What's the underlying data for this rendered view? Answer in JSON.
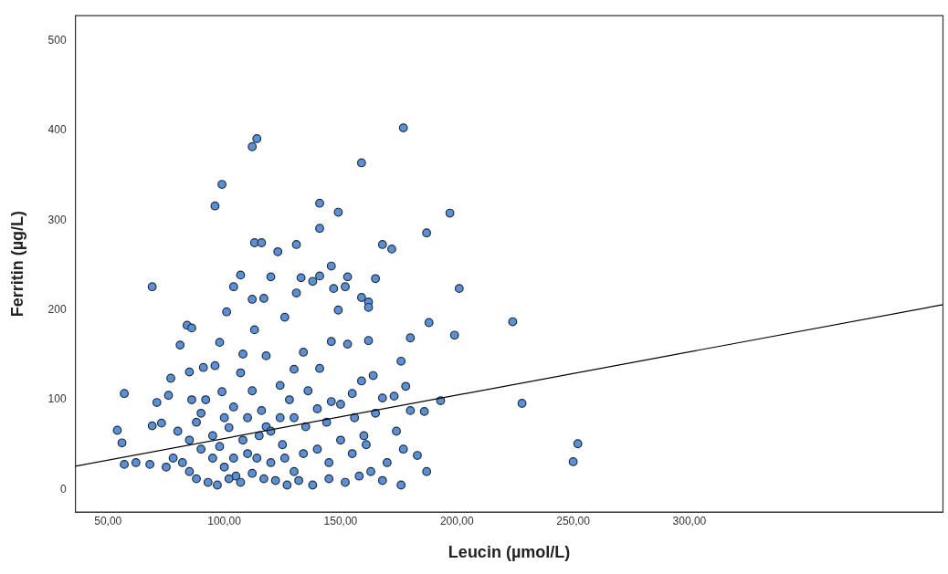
{
  "chart_data": {
    "type": "scatter",
    "xlabel": "Leucin (µmol/L)",
    "ylabel": "Ferritin (µg/L)",
    "xlim": [
      36,
      409
    ],
    "ylim": [
      -25,
      528
    ],
    "xticks": [
      {
        "value": 50,
        "label": "50,00"
      },
      {
        "value": 100,
        "label": "100,00"
      },
      {
        "value": 150,
        "label": "150,00"
      },
      {
        "value": 200,
        "label": "200,00"
      },
      {
        "value": 250,
        "label": "250,00"
      },
      {
        "value": 300,
        "label": "300,00"
      }
    ],
    "yticks": [
      0,
      100,
      200,
      300,
      400,
      500
    ],
    "grid": false,
    "legend": false,
    "series": [
      {
        "color": "#5b8fd6",
        "marker": "circle",
        "x": [
          177,
          114,
          112,
          159,
          99,
          96,
          141,
          149,
          197,
          141,
          187,
          113,
          116,
          131,
          168,
          172,
          123,
          146,
          107,
          120,
          133,
          153,
          165,
          141,
          138,
          69,
          104,
          152,
          147,
          201,
          131,
          117,
          112,
          159,
          162,
          162,
          126,
          101,
          149,
          188,
          224,
          84,
          86,
          113,
          199,
          81,
          98,
          180,
          108,
          146,
          153,
          162,
          176,
          134,
          118,
          85,
          91,
          96,
          107,
          130,
          141,
          159,
          164,
          178,
          173,
          168,
          193,
          228,
          186,
          180,
          57,
          76,
          71,
          56,
          54,
          57,
          62,
          68,
          69,
          73,
          77,
          99,
          124,
          146,
          155,
          130,
          116,
          102,
          88,
          80,
          85,
          90,
          95,
          100,
          105,
          110,
          115,
          120,
          125,
          130,
          135,
          140,
          145,
          150,
          155,
          160,
          165,
          170,
          174,
          177,
          183,
          187,
          176,
          168,
          163,
          158,
          152,
          145,
          138,
          132,
          127,
          122,
          117,
          112,
          107,
          102,
          97,
          93,
          88,
          85,
          82,
          78,
          75,
          250,
          252,
          140,
          150,
          128,
          118,
          108,
          95,
          92,
          104,
          112,
          124,
          136,
          144,
          156,
          161,
          134,
          126,
          114,
          104,
          98,
          120,
          110,
          100,
          90,
          86
        ],
        "values": [
          403,
          391,
          382,
          364,
          340,
          316,
          319,
          309,
          308,
          291,
          286,
          275,
          275,
          273,
          273,
          268,
          265,
          249,
          239,
          237,
          236,
          237,
          235,
          238,
          232,
          226,
          226,
          226,
          224,
          224,
          219,
          213,
          212,
          214,
          209,
          203,
          192,
          198,
          200,
          186,
          187,
          183,
          180,
          178,
          172,
          161,
          164,
          169,
          151,
          165,
          162,
          166,
          143,
          153,
          149,
          131,
          136,
          138,
          130,
          134,
          135,
          121,
          127,
          115,
          104,
          102,
          99,
          96,
          87,
          88,
          107,
          105,
          97,
          52,
          66,
          28,
          30,
          28,
          71,
          74,
          124,
          109,
          116,
          98,
          107,
          80,
          88,
          69,
          75,
          65,
          55,
          45,
          35,
          25,
          15,
          40,
          60,
          30,
          50,
          20,
          70,
          45,
          30,
          55,
          40,
          60,
          85,
          30,
          65,
          45,
          38,
          20,
          5,
          10,
          20,
          15,
          8,
          12,
          5,
          10,
          5,
          10,
          12,
          18,
          8,
          12,
          5,
          8,
          12,
          20,
          30,
          35,
          25,
          31,
          51,
          90,
          95,
          100,
          70,
          55,
          60,
          100,
          92,
          110,
          80,
          110,
          75,
          80,
          50,
          40,
          35,
          35,
          35,
          48,
          65,
          80,
          80,
          85,
          100
        ]
      },
      {
        "type": "line",
        "color": "#000000",
        "marker": "none",
        "line_style": "solid",
        "x": [
          36,
          409
        ],
        "values": [
          26,
          206
        ]
      }
    ]
  }
}
